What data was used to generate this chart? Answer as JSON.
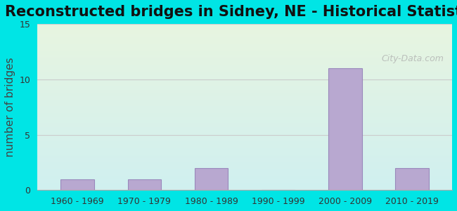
{
  "title": "Reconstructed bridges in Sidney, NE - Historical Statistics",
  "categories": [
    "1960 - 1969",
    "1970 - 1979",
    "1980 - 1989",
    "1990 - 1999",
    "2000 - 2009",
    "2010 - 2019"
  ],
  "values": [
    1,
    1,
    2,
    0,
    11,
    2
  ],
  "bar_color": "#b8a8d0",
  "bar_edge_color": "#9988bb",
  "ylabel": "number of bridges",
  "ylim": [
    0,
    15
  ],
  "yticks": [
    0,
    5,
    10,
    15
  ],
  "background_outer": "#00e5e5",
  "background_plot_top": "#e8f5e0",
  "background_plot_bottom": "#d0f0f0",
  "title_fontsize": 15,
  "axis_label_fontsize": 11,
  "tick_fontsize": 9,
  "grid_color": "#cccccc",
  "watermark_text": "City-Data.com",
  "watermark_color": "#aaaaaa"
}
